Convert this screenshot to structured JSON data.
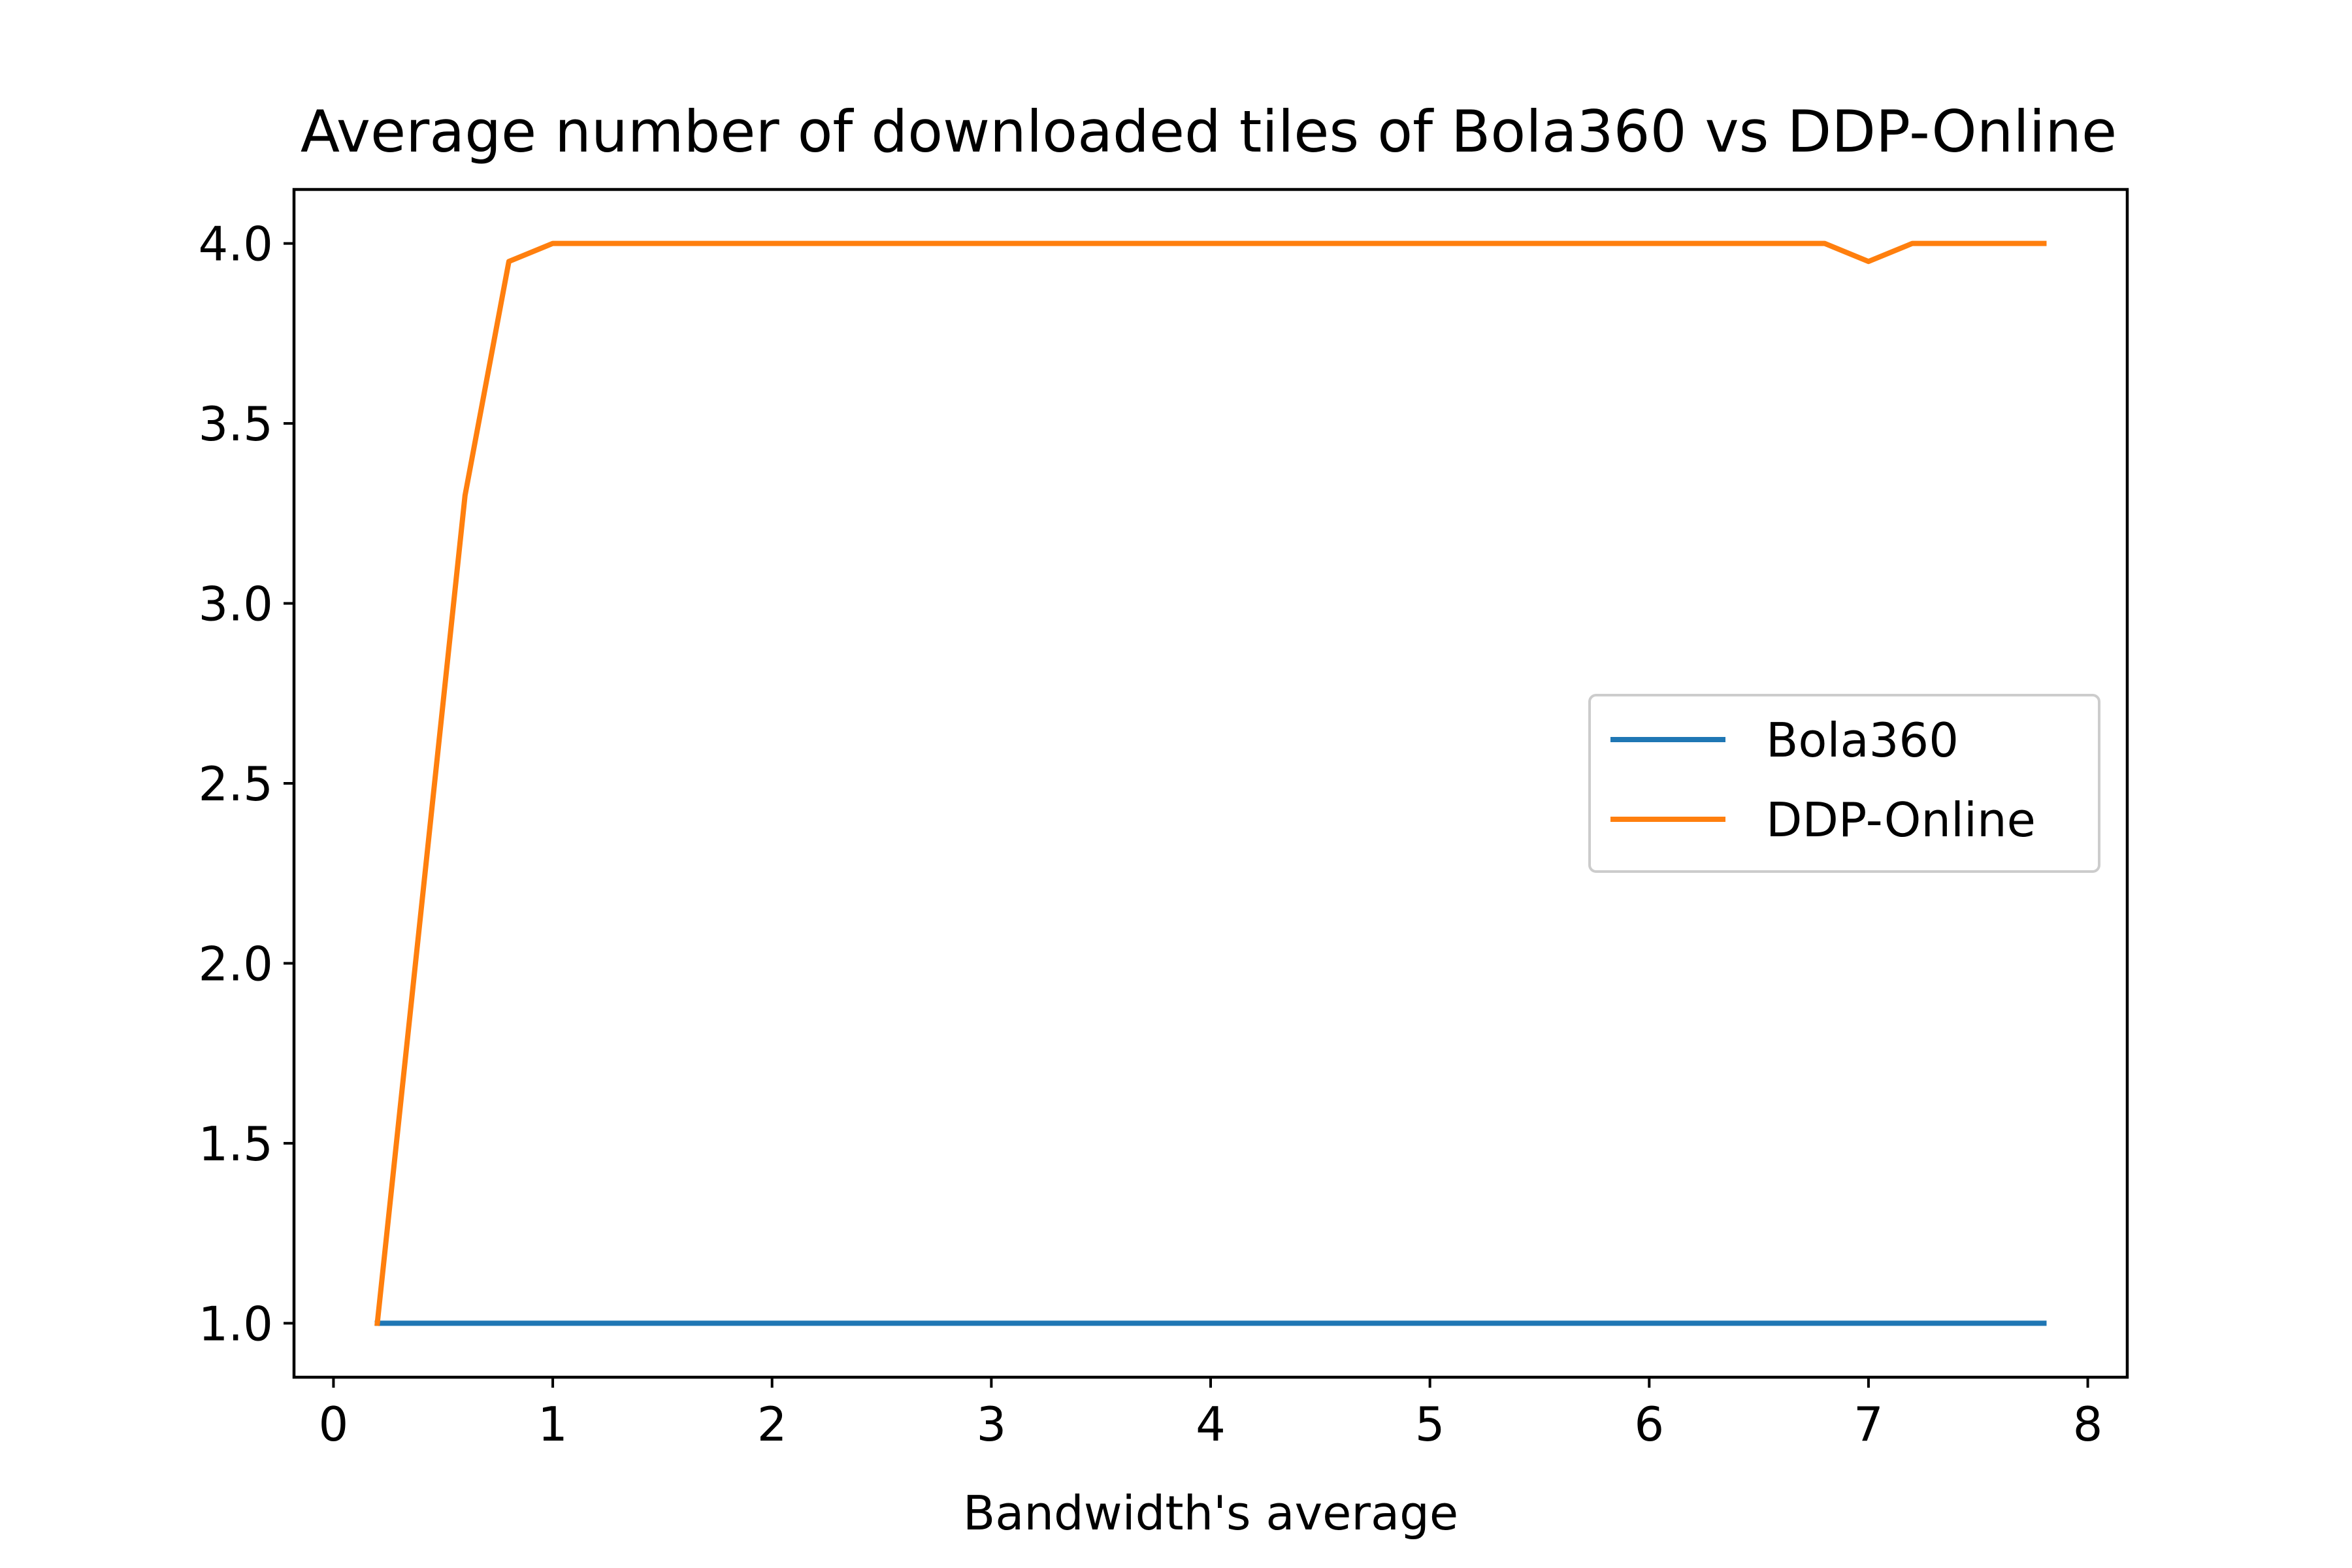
{
  "chart_data": {
    "type": "line",
    "title": "Average number of downloaded tiles of Bola360 vs DDP-Online",
    "xlabel": "Bandwidth's average",
    "ylabel": "",
    "xlim": [
      -0.18,
      8.18
    ],
    "ylim": [
      0.85,
      4.15
    ],
    "xticks": [
      0,
      1,
      2,
      3,
      4,
      5,
      6,
      7,
      8
    ],
    "xtick_labels": [
      "0",
      "1",
      "2",
      "3",
      "4",
      "5",
      "6",
      "7",
      "8"
    ],
    "yticks": [
      1.0,
      1.5,
      2.0,
      2.5,
      3.0,
      3.5,
      4.0
    ],
    "ytick_labels": [
      "1.0",
      "1.5",
      "2.0",
      "2.5",
      "3.0",
      "3.5",
      "4.0"
    ],
    "grid": false,
    "legend_position": "center-right",
    "series": [
      {
        "name": "Bola360",
        "color": "#1f77b4",
        "x": [
          0.2,
          0.4,
          0.6,
          0.8,
          1.0,
          1.2,
          1.4,
          1.6,
          1.8,
          2.0,
          2.2,
          2.4,
          2.6,
          2.8,
          3.0,
          3.2,
          3.4,
          3.6,
          3.8,
          4.0,
          4.2,
          4.4,
          4.6,
          4.8,
          5.0,
          5.2,
          5.4,
          5.6,
          5.8,
          6.0,
          6.2,
          6.4,
          6.6,
          6.8,
          7.0,
          7.2,
          7.4,
          7.6,
          7.8
        ],
        "y": [
          1,
          1,
          1,
          1,
          1,
          1,
          1,
          1,
          1,
          1,
          1,
          1,
          1,
          1,
          1,
          1,
          1,
          1,
          1,
          1,
          1,
          1,
          1,
          1,
          1,
          1,
          1,
          1,
          1,
          1,
          1,
          1,
          1,
          1,
          1,
          1,
          1,
          1,
          1
        ]
      },
      {
        "name": "DDP-Online",
        "color": "#ff7f0e",
        "x": [
          0.2,
          0.4,
          0.6,
          0.8,
          1.0,
          1.2,
          1.4,
          1.6,
          1.8,
          2.0,
          2.2,
          2.4,
          2.6,
          2.8,
          3.0,
          3.2,
          3.4,
          3.6,
          3.8,
          4.0,
          4.2,
          4.4,
          4.6,
          4.8,
          5.0,
          5.2,
          5.4,
          5.6,
          5.8,
          6.0,
          6.2,
          6.4,
          6.6,
          6.8,
          7.0,
          7.2,
          7.4,
          7.6,
          7.8
        ],
        "y": [
          1.0,
          2.15,
          3.3,
          3.95,
          4.0,
          4.0,
          4.0,
          4.0,
          4.0,
          4.0,
          4.0,
          4.0,
          4.0,
          4.0,
          4.0,
          4.0,
          4.0,
          4.0,
          4.0,
          4.0,
          4.0,
          4.0,
          4.0,
          4.0,
          4.0,
          4.0,
          4.0,
          4.0,
          4.0,
          4.0,
          4.0,
          4.0,
          4.0,
          4.0,
          3.95,
          4.0,
          4.0,
          4.0,
          4.0
        ]
      }
    ]
  }
}
